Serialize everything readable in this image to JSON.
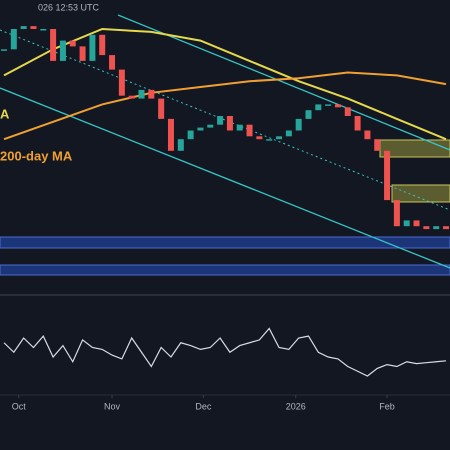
{
  "chart_data": [
    {
      "type": "candlestick",
      "header": "026 12:53 UTC",
      "annotations": [
        "A",
        "200-day MA"
      ],
      "xlim": [
        0,
        45
      ],
      "xticks": [
        {
          "value": 1.5,
          "label": "Oct"
        },
        {
          "value": 11,
          "label": "Nov"
        },
        {
          "value": 20.3,
          "label": "Dec"
        },
        {
          "value": 29.7,
          "label": "2026"
        },
        {
          "value": 39,
          "label": "Feb"
        }
      ],
      "ylim": [
        0,
        100
      ],
      "up_color": "#26a69a",
      "down_color": "#ef5350",
      "values": [
        83,
        90,
        91,
        90,
        90,
        79,
        86,
        84,
        79,
        88,
        81,
        76,
        67,
        66,
        69,
        66,
        59,
        48,
        52,
        55,
        56,
        57,
        60,
        55,
        57,
        53,
        52,
        52,
        53,
        55,
        59,
        62,
        64,
        64,
        63,
        60,
        55,
        52,
        48,
        31,
        22,
        24,
        22,
        21,
        22,
        21
      ],
      "series": [
        {
          "color": "#e5d84a",
          "x": [
            0,
            5,
            10,
            15,
            20,
            25,
            30,
            35,
            40,
            45
          ],
          "values": [
            74,
            83,
            90,
            89,
            86,
            79,
            72,
            66,
            59,
            52
          ]
        },
        {
          "color": "#f0a030",
          "x": [
            0,
            5,
            10,
            15,
            20,
            25,
            30,
            35,
            40,
            45
          ],
          "values": [
            52,
            58,
            64,
            68,
            70,
            72,
            73,
            75,
            74,
            71
          ]
        }
      ]
    },
    {
      "type": "line",
      "ylim": [
        0,
        100
      ],
      "color": "#d8dce6",
      "values": [
        55,
        45,
        60,
        50,
        62,
        40,
        52,
        35,
        58,
        50,
        48,
        42,
        38,
        60,
        45,
        30,
        50,
        40,
        55,
        52,
        48,
        50,
        60,
        45,
        52,
        55,
        58,
        70,
        50,
        48,
        60,
        62,
        45,
        40,
        38,
        30,
        25,
        20,
        28,
        32,
        30,
        35,
        33,
        34,
        35,
        36
      ]
    }
  ]
}
